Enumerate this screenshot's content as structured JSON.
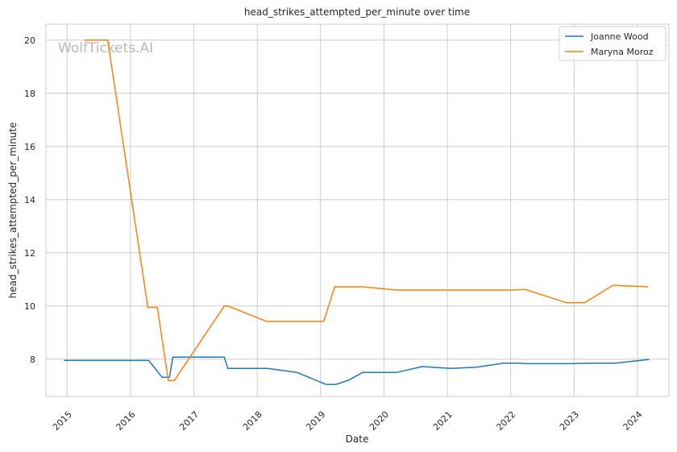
{
  "chart_data": {
    "type": "line",
    "title": "head_strikes_attempted_per_minute over time",
    "xlabel": "Date",
    "ylabel": "head_strikes_attempted_per_minute",
    "watermark": "WolfTickets.AI",
    "grid": true,
    "legend_position": "top-right",
    "xlim": [
      "2014-09-01",
      "2024-07-01"
    ],
    "ylim": [
      6.6,
      20.6
    ],
    "x_ticks": [
      "2015",
      "2016",
      "2017",
      "2018",
      "2019",
      "2020",
      "2021",
      "2022",
      "2023",
      "2024"
    ],
    "y_ticks": [
      "8",
      "10",
      "12",
      "14",
      "16",
      "18",
      "20"
    ],
    "series": [
      {
        "name": "Joanne Wood",
        "color": "#1f77b4",
        "points": [
          {
            "x": "2014-12-13",
            "y": 7.95
          },
          {
            "x": "2015-05-01",
            "y": 7.95
          },
          {
            "x": "2016-04-16",
            "y": 7.95
          },
          {
            "x": "2016-07-01",
            "y": 7.32
          },
          {
            "x": "2016-08-13",
            "y": 7.32
          },
          {
            "x": "2016-09-01",
            "y": 8.08
          },
          {
            "x": "2017-06-25",
            "y": 8.08
          },
          {
            "x": "2017-07-15",
            "y": 7.65
          },
          {
            "x": "2018-03-01",
            "y": 7.65
          },
          {
            "x": "2018-08-18",
            "y": 7.5
          },
          {
            "x": "2019-02-01",
            "y": 7.05
          },
          {
            "x": "2019-03-30",
            "y": 7.05
          },
          {
            "x": "2019-06-08",
            "y": 7.2
          },
          {
            "x": "2019-08-31",
            "y": 7.5
          },
          {
            "x": "2020-03-14",
            "y": 7.5
          },
          {
            "x": "2020-08-08",
            "y": 7.72
          },
          {
            "x": "2021-01-24",
            "y": 7.65
          },
          {
            "x": "2021-06-19",
            "y": 7.7
          },
          {
            "x": "2021-11-20",
            "y": 7.85
          },
          {
            "x": "2022-02-20",
            "y": 7.85
          },
          {
            "x": "2022-04-09",
            "y": 7.83
          },
          {
            "x": "2022-12-10",
            "y": 7.83
          },
          {
            "x": "2023-03-25",
            "y": 7.85
          },
          {
            "x": "2023-08-26",
            "y": 7.85
          },
          {
            "x": "2024-03-09",
            "y": 7.99
          }
        ]
      },
      {
        "name": "Maryna Moroz",
        "color": "#ff7f0e",
        "points": [
          {
            "x": "2015-04-11",
            "y": 20.0
          },
          {
            "x": "2015-08-23",
            "y": 20.0
          },
          {
            "x": "2016-04-10",
            "y": 9.95
          },
          {
            "x": "2016-06-04",
            "y": 9.95
          },
          {
            "x": "2016-08-06",
            "y": 7.2
          },
          {
            "x": "2016-09-10",
            "y": 7.2
          },
          {
            "x": "2017-06-25",
            "y": 10.0
          },
          {
            "x": "2017-07-15",
            "y": 10.0
          },
          {
            "x": "2018-02-24",
            "y": 9.42
          },
          {
            "x": "2019-01-19",
            "y": 9.42
          },
          {
            "x": "2019-03-23",
            "y": 10.72
          },
          {
            "x": "2019-08-31",
            "y": 10.72
          },
          {
            "x": "2020-03-14",
            "y": 10.6
          },
          {
            "x": "2020-08-08",
            "y": 10.6
          },
          {
            "x": "2022-01-08",
            "y": 10.6
          },
          {
            "x": "2022-03-26",
            "y": 10.62
          },
          {
            "x": "2022-11-19",
            "y": 10.12
          },
          {
            "x": "2023-03-04",
            "y": 10.12
          },
          {
            "x": "2023-08-12",
            "y": 10.78
          },
          {
            "x": "2024-03-02",
            "y": 10.72
          }
        ]
      }
    ]
  }
}
